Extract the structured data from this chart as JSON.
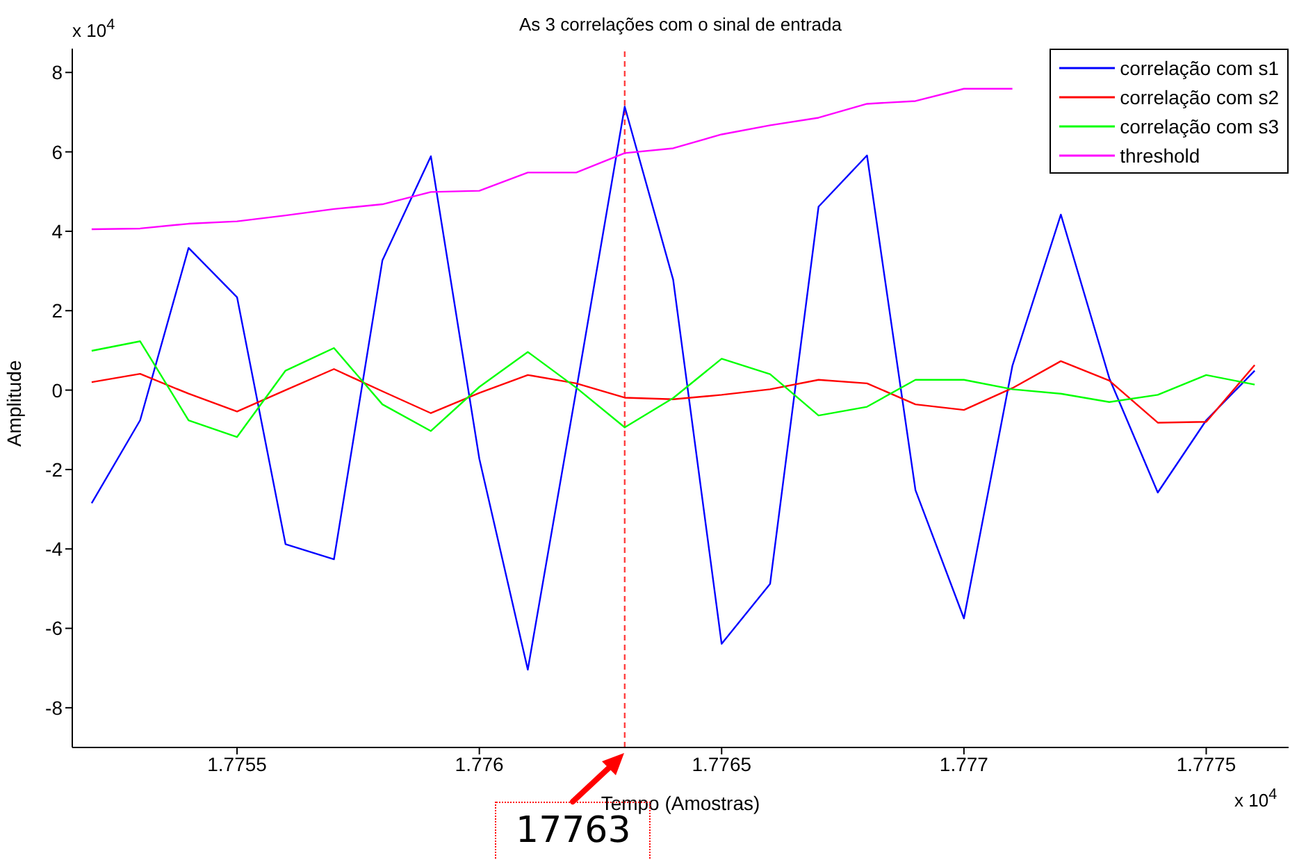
{
  "chart_data": {
    "type": "line",
    "title": "As 3 correlações com o sinal de entrada",
    "xlabel": "Tempo (Amostras)",
    "ylabel": "Amplitude",
    "x": [
      1.7752,
      1.7753,
      1.7754,
      1.7755,
      1.7756,
      1.7757,
      1.7758,
      1.7759,
      1.776,
      1.7761,
      1.7762,
      1.7763,
      1.7764,
      1.7765,
      1.7766,
      1.7767,
      1.7768,
      1.7769,
      1.777,
      1.7771,
      1.7772,
      1.7773,
      1.7774,
      1.7775,
      1.7776
    ],
    "series": [
      {
        "name": "correlação com s1",
        "color": "#0000ff",
        "values": [
          -2.85,
          -0.76,
          3.58,
          2.34,
          -3.88,
          -4.26,
          3.27,
          5.89,
          -1.73,
          -7.04,
          0,
          7.14,
          2.78,
          -6.39,
          -4.88,
          4.62,
          5.91,
          -2.52,
          -5.75,
          0.61,
          4.42,
          0.3,
          -2.58,
          -0.76,
          0.49
        ]
      },
      {
        "name": "correlação com s2",
        "color": "#ff0000",
        "values": [
          0.2,
          0.41,
          -0.09,
          -0.54,
          0,
          0.53,
          -0.03,
          -0.58,
          -0.07,
          0.38,
          0.17,
          -0.19,
          -0.23,
          -0.12,
          0.02,
          0.26,
          0.17,
          -0.36,
          -0.5,
          0.05,
          0.73,
          0.24,
          -0.82,
          -0.8,
          0.63
        ]
      },
      {
        "name": "correlação com s3",
        "color": "#00ff00",
        "values": [
          0.99,
          1.23,
          -0.76,
          -1.18,
          0.49,
          1.06,
          -0.36,
          -1.03,
          0.08,
          0.96,
          0.06,
          -0.94,
          -0.2,
          0.79,
          0.4,
          -0.64,
          -0.42,
          0.26,
          0.26,
          0.02,
          -0.09,
          -0.3,
          -0.12,
          0.38,
          0.14
        ]
      },
      {
        "name": "threshold",
        "color": "#ff00ff",
        "values": [
          4.05,
          4.07,
          4.19,
          4.25,
          4.4,
          4.56,
          4.68,
          4.99,
          5.02,
          5.48,
          5.48,
          5.97,
          6.09,
          6.44,
          6.67,
          6.86,
          7.21,
          7.28,
          7.59,
          7.59,
          null,
          null,
          null,
          null,
          null
        ]
      }
    ],
    "xlim": [
      1.77516,
      1.77767
    ],
    "ylim": [
      -9,
      8.6
    ],
    "xticks": [
      1.7755,
      1.776,
      1.7765,
      1.777,
      1.7775
    ],
    "yticks": [
      -8,
      -6,
      -4,
      -2,
      0,
      2,
      4,
      6,
      8
    ],
    "ref_lines": [
      {
        "axis": "x",
        "value": 1.7763,
        "color": "#ff4040",
        "line_style": "dashed"
      }
    ],
    "annotations": [
      "17763",
      "x 10$^{4}$",
      "x 10$^{4}$"
    ],
    "legend": "top right",
    "grid": false,
    "marker": "none",
    "line_style": "solid"
  }
}
